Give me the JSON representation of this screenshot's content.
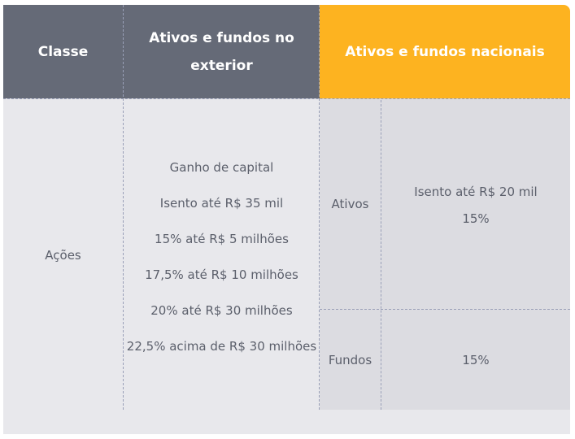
{
  "header": {
    "classe": "Classe",
    "exterior_line1": "Ativos e fundos no",
    "exterior_line2": "exterior",
    "nacionais": "Ativos e fundos nacionais"
  },
  "row": {
    "classe": "Ações",
    "exterior_lines": [
      "Ganho de capital",
      "Isento até R$ 35 mil",
      "15% até R$ 5 milhões",
      "17,5% até R$ 10 milhões",
      "20% até R$ 30 milhões",
      "22,5% acima de R$ 30 milhões"
    ],
    "ativos_label": "Ativos",
    "ativos_lines": [
      "Isento até R$ 20 mil",
      "15%"
    ],
    "fundos_label": "Fundos",
    "fundos_value": "15%"
  },
  "colors": {
    "header_dark": "#656a77",
    "header_gold": "#fdb320",
    "body_bg": "#e8e8ec",
    "text": "#5b5f6b"
  }
}
